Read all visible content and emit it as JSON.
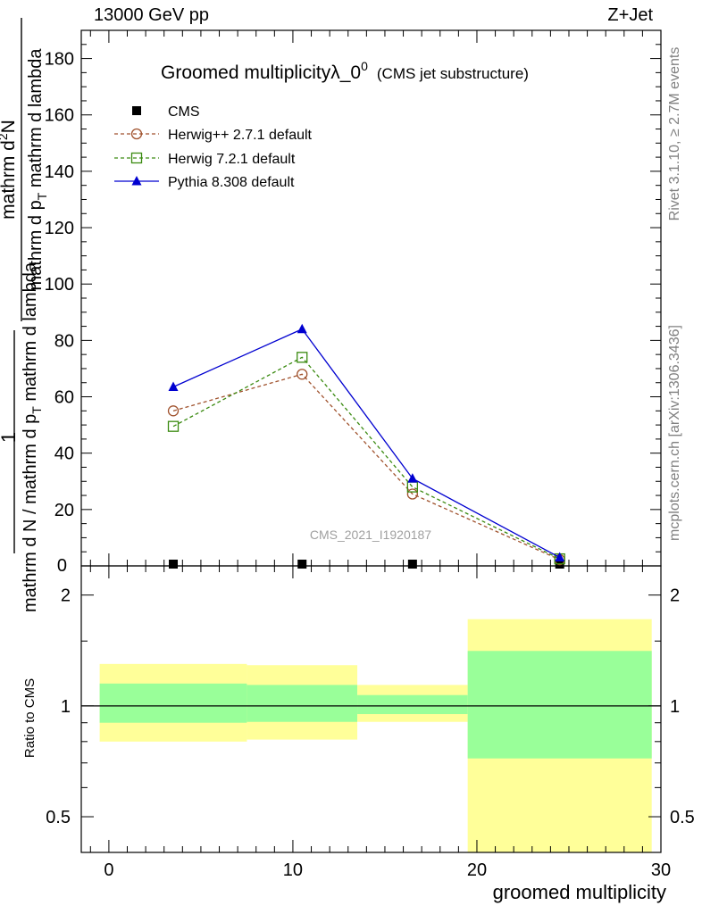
{
  "header": {
    "energy_label": "13000 GeV pp",
    "process_label": "Z+Jet"
  },
  "side_labels": {
    "rivet": "Rivet 3.1.10, ≥ 2.7M events",
    "mcplots": "mcplots.cern.ch [arXiv:1306.3436]"
  },
  "watermark": "CMS_2021_I1920187",
  "chart_data": [
    {
      "id": "main",
      "type": "line",
      "title": "Groomed multiplicityλ_0",
      "title_superscript": "0",
      "subtitle": "(CMS jet substructure)",
      "ylabel_numerator": "mathrm d²N",
      "ylabel_numerator_parts": [
        "mathrm d",
        "2",
        "N"
      ],
      "ylabel_line1_parts": [
        "mathrm d N / mathrm d p",
        "T",
        " mathrm d lambda"
      ],
      "ylabel_line2_parts": [
        "mathrm d p",
        "T",
        " mathrm d lambda"
      ],
      "ylabel_prefix": "1",
      "ylim": [
        0,
        190
      ],
      "yticks": [
        20,
        40,
        60,
        80,
        100,
        120,
        140,
        160,
        180
      ],
      "yticks_partial": [
        0
      ],
      "ytick_labels": [
        "20",
        "40",
        "60",
        "80",
        "100",
        "120",
        "140",
        "160",
        "180"
      ],
      "ytick_label_partial": "0",
      "xlim": [
        -1.5,
        30
      ],
      "series": [
        {
          "name": "CMS",
          "marker": "square-filled",
          "color": "#000000",
          "x": [
            3.5,
            10.5,
            16.5,
            24.5
          ],
          "y": [
            0.3,
            0.3,
            0.3,
            0.3
          ]
        },
        {
          "name": "Herwig++ 2.7.1 default",
          "marker": "circle-open",
          "color": "#a0522d",
          "dashed": true,
          "x": [
            3.5,
            10.5,
            16.5,
            24.5
          ],
          "y": [
            55,
            68,
            25.5,
            2.2
          ]
        },
        {
          "name": "Herwig 7.2.1 default",
          "marker": "square-open",
          "color": "#3a8a10",
          "dashed": true,
          "x": [
            3.5,
            10.5,
            16.5,
            24.5
          ],
          "y": [
            49.5,
            74,
            28,
            2.5
          ]
        },
        {
          "name": "Pythia 8.308 default",
          "marker": "triangle-filled",
          "color": "#0000d0",
          "dashed": false,
          "x": [
            3.5,
            10.5,
            16.5,
            24.5
          ],
          "y": [
            63.5,
            84,
            31,
            3
          ]
        }
      ]
    },
    {
      "id": "ratio",
      "type": "area",
      "ylabel": "Ratio to CMS",
      "xlabel": "groomed multiplicity",
      "ylim": [
        0.4,
        2.4
      ],
      "yscale": "log",
      "yticks": [
        0.5,
        1,
        2
      ],
      "ytick_labels": [
        "0.5",
        "1",
        "2"
      ],
      "xlim": [
        -1.5,
        30
      ],
      "xticks": [
        0,
        10,
        20,
        30
      ],
      "xtick_labels": [
        "0",
        "10",
        "20",
        "30"
      ],
      "reference_line": 1,
      "bins": [
        {
          "x_low": -0.5,
          "x_high": 7.5,
          "band_outer": [
            0.8,
            1.3
          ],
          "band_inner": [
            0.9,
            1.15
          ]
        },
        {
          "x_low": 7.5,
          "x_high": 13.5,
          "band_outer": [
            0.81,
            1.29
          ],
          "band_inner": [
            0.905,
            1.14
          ]
        },
        {
          "x_low": 13.5,
          "x_high": 19.5,
          "band_outer": [
            0.905,
            1.14
          ],
          "band_inner": [
            0.95,
            1.07
          ]
        },
        {
          "x_low": 19.5,
          "x_high": 29.5,
          "band_outer": [
            0.4,
            1.72
          ],
          "band_inner": [
            0.72,
            1.41
          ]
        }
      ],
      "colors": {
        "outer": "#ffff99",
        "inner": "#99ff99"
      }
    }
  ]
}
